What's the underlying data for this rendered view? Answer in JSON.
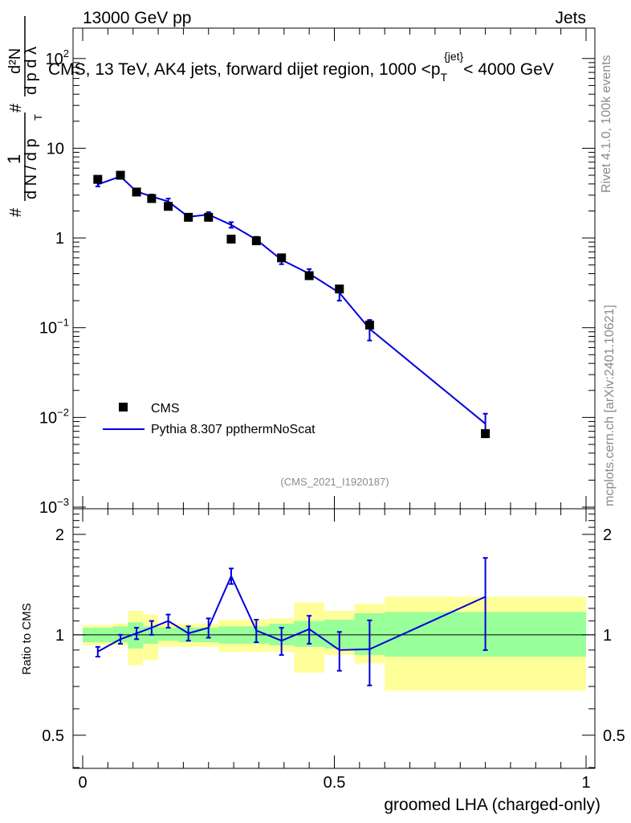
{
  "header": {
    "left": "13000 GeV pp",
    "right": "Jets"
  },
  "side_text": {
    "rivet": "Rivet 4.1.0,  100k events",
    "mcplots": "mcplots.cern.ch [arXiv:2401.10621]"
  },
  "chart_data": [
    {
      "type": "scatter",
      "title": "CMS, 13 TeV, AK4 jets, forward dijet region, 1000 <p_T^{jet}< 4000 GeV",
      "title_parts": {
        "pre": "CMS, 13 TeV, AK4 jets, forward dijet region, 1000 <p",
        "sub": "T",
        "sup": "{jet}",
        "post": "< 4000 GeV"
      },
      "ylabel": "1/(dN/dp_T) d²N/(dp_T dλ)",
      "ylabel_parts": {
        "hash1": "#",
        "one": "1",
        "dn_dpt": "d N / d p",
        "t": "T",
        "hash2": "#",
        "d2n": "d²N",
        "dptdl": "d p  d λ"
      },
      "yscale": "log",
      "ylim": [
        0.001,
        160
      ],
      "xlim": [
        0,
        1
      ],
      "y_tick_labels": [
        {
          "base": "10",
          "exp": "2",
          "value": 100
        },
        {
          "base": "10",
          "exp": "",
          "value": 10
        },
        {
          "base": "1",
          "exp": "",
          "value": 1
        },
        {
          "base": "10",
          "exp": "−1",
          "value": 0.1
        },
        {
          "base": "10",
          "exp": "−2",
          "value": 0.01
        },
        {
          "base": "10",
          "exp": "−3",
          "value": 0.001
        }
      ],
      "series": [
        {
          "name": "CMS",
          "style": "markers",
          "color": "#000000",
          "x": [
            0.03,
            0.075,
            0.107,
            0.137,
            0.17,
            0.21,
            0.25,
            0.295,
            0.345,
            0.395,
            0.45,
            0.51,
            0.57,
            0.8
          ],
          "y": [
            4.5,
            5.0,
            3.25,
            2.75,
            2.25,
            1.7,
            1.7,
            0.97,
            0.93,
            0.6,
            0.38,
            0.27,
            0.107,
            0.0066
          ]
        },
        {
          "name": "Pythia 8.307 ppthermNoScat",
          "style": "line",
          "color": "#0000dd",
          "x": [
            0.03,
            0.075,
            0.107,
            0.137,
            0.17,
            0.21,
            0.25,
            0.295,
            0.345,
            0.395,
            0.45,
            0.51,
            0.57,
            0.8
          ],
          "y": [
            3.95,
            4.85,
            3.3,
            2.9,
            2.55,
            1.72,
            1.82,
            1.4,
            0.96,
            0.57,
            0.4,
            0.245,
            0.097,
            0.0085
          ],
          "err": [
            0.2,
            0.25,
            0.15,
            0.15,
            0.2,
            0.1,
            0.12,
            0.1,
            0.07,
            0.06,
            0.05,
            0.045,
            0.025,
            0.0025
          ]
        }
      ],
      "legend": {
        "position": "lower-left",
        "entries": [
          "CMS",
          "Pythia 8.307 ppthermNoScat"
        ]
      },
      "watermark": "(CMS_2021_I1920187)"
    },
    {
      "type": "scatter",
      "ylabel": "Ratio to CMS",
      "xlabel": "groomed LHA (charged-only)",
      "yscale": "log",
      "ylim": [
        0.4,
        2.4
      ],
      "xlim": [
        0,
        1
      ],
      "y_tick_labels": [
        "2",
        "1",
        "0.5"
      ],
      "y_tick_values": [
        2,
        1,
        0.5
      ],
      "x_tick_labels": [
        "0",
        "0.5",
        "1"
      ],
      "x_tick_values": [
        0,
        0.5,
        1
      ],
      "bands": {
        "edges": [
          0,
          0.06,
          0.09,
          0.12,
          0.15,
          0.19,
          0.23,
          0.27,
          0.32,
          0.37,
          0.42,
          0.48,
          0.54,
          0.6,
          1.0
        ],
        "green_lo": [
          0.95,
          0.95,
          0.91,
          0.94,
          0.96,
          0.95,
          0.95,
          0.94,
          0.94,
          0.93,
          0.92,
          0.91,
          0.87,
          0.86
        ],
        "green_hi": [
          1.05,
          1.06,
          1.09,
          1.06,
          1.05,
          1.05,
          1.05,
          1.06,
          1.06,
          1.08,
          1.1,
          1.11,
          1.16,
          1.17
        ],
        "yellow_lo": [
          0.93,
          0.93,
          0.81,
          0.84,
          0.92,
          0.92,
          0.92,
          0.89,
          0.89,
          0.89,
          0.77,
          0.87,
          0.82,
          0.68
        ],
        "yellow_hi": [
          1.07,
          1.08,
          1.18,
          1.15,
          1.08,
          1.08,
          1.08,
          1.11,
          1.11,
          1.12,
          1.25,
          1.18,
          1.24,
          1.3
        ],
        "green_color": "#99ff99",
        "yellow_color": "#ffff99"
      },
      "series": [
        {
          "name": "Pythia 8.307 ppthermNoScat / CMS",
          "color": "#0000dd",
          "x": [
            0.03,
            0.075,
            0.107,
            0.137,
            0.17,
            0.21,
            0.25,
            0.295,
            0.345,
            0.395,
            0.45,
            0.51,
            0.57,
            0.8
          ],
          "y": [
            0.89,
            0.97,
            1.01,
            1.05,
            1.1,
            1.01,
            1.05,
            1.5,
            1.03,
            0.96,
            1.04,
            0.9,
            0.905,
            1.3
          ],
          "err_lo": [
            0.03,
            0.03,
            0.04,
            0.05,
            0.05,
            0.05,
            0.07,
            0.08,
            0.08,
            0.09,
            0.1,
            0.12,
            0.2,
            0.4
          ],
          "err_hi": [
            0.03,
            0.03,
            0.04,
            0.05,
            0.05,
            0.05,
            0.07,
            0.08,
            0.08,
            0.09,
            0.1,
            0.12,
            0.2,
            0.4
          ]
        }
      ]
    }
  ]
}
